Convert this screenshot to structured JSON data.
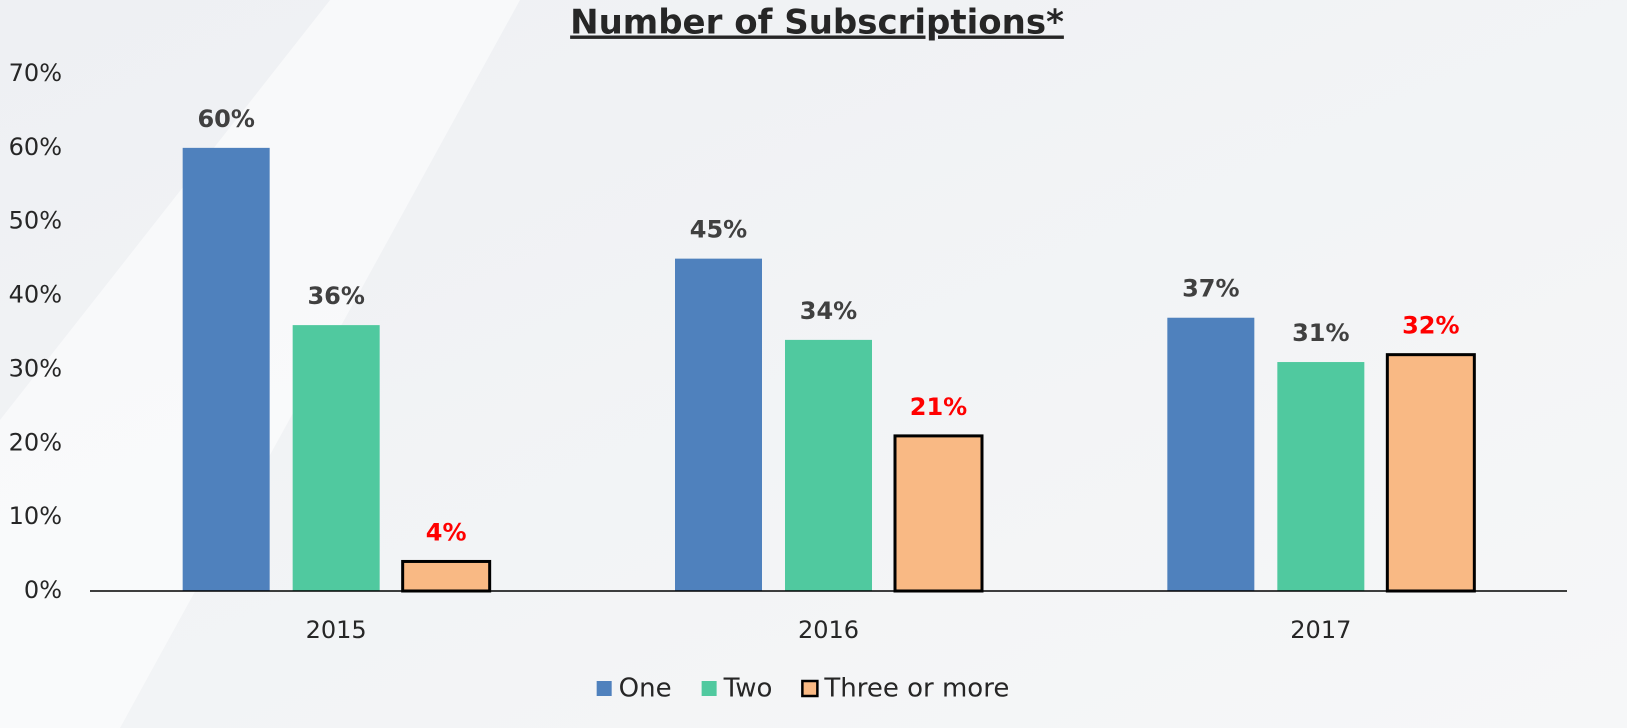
{
  "chart_data": {
    "type": "bar",
    "title": "Number of Subscriptions*",
    "categories": [
      "2015",
      "2016",
      "2017"
    ],
    "series": [
      {
        "name": "One",
        "color": "#4f81bd",
        "label_color": "#404040",
        "values": [
          60,
          45,
          37
        ],
        "value_labels": [
          "60%",
          "45%",
          "37%"
        ]
      },
      {
        "name": "Two",
        "color": "#50c99f",
        "label_color": "#404040",
        "values": [
          36,
          34,
          31
        ],
        "value_labels": [
          "36%",
          "34%",
          "31%"
        ]
      },
      {
        "name": "Three or more",
        "color": "#f9b984",
        "label_color": "#ff0000",
        "outline": "#000000",
        "values": [
          4,
          21,
          32
        ],
        "value_labels": [
          "4%",
          "21%",
          "32%"
        ]
      }
    ],
    "ylim": [
      0,
      70
    ],
    "yticks": [
      {
        "value": 0,
        "label": "0%"
      },
      {
        "value": 10,
        "label": "10%"
      },
      {
        "value": 20,
        "label": "20%"
      },
      {
        "value": 30,
        "label": "30%"
      },
      {
        "value": 40,
        "label": "40%"
      },
      {
        "value": 50,
        "label": "50%"
      },
      {
        "value": 60,
        "label": "60%"
      },
      {
        "value": 70,
        "label": "70%"
      }
    ],
    "grid": false,
    "legend": "bottom"
  }
}
